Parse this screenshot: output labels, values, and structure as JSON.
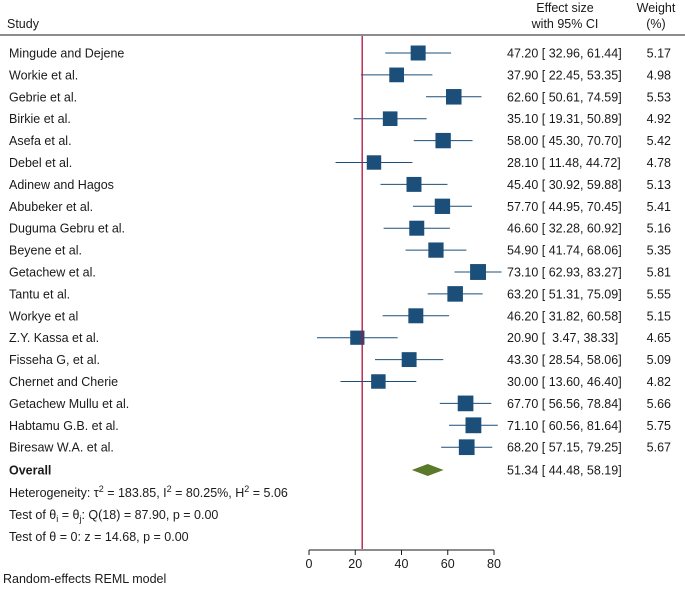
{
  "chart_data": {
    "type": "forest",
    "headers": {
      "study": "Study",
      "effect_line1": "Effect size",
      "effect_line2": "with 95% CI",
      "weight_line1": "Weight",
      "weight_line2": "(%)"
    },
    "studies": [
      {
        "name": "Mingude and Dejene",
        "es": 47.2,
        "lo": 32.96,
        "hi": 61.44,
        "ci_text": "47.20 [ 32.96, 61.44]",
        "weight": "5.17"
      },
      {
        "name": "Workie et al.",
        "es": 37.9,
        "lo": 22.45,
        "hi": 53.35,
        "ci_text": "37.90 [ 22.45, 53.35]",
        "weight": "4.98"
      },
      {
        "name": "Gebrie et al.",
        "es": 62.6,
        "lo": 50.61,
        "hi": 74.59,
        "ci_text": "62.60 [ 50.61, 74.59]",
        "weight": "5.53"
      },
      {
        "name": "Birkie et al.",
        "es": 35.1,
        "lo": 19.31,
        "hi": 50.89,
        "ci_text": "35.10 [ 19.31, 50.89]",
        "weight": "4.92"
      },
      {
        "name": "Asefa et al.",
        "es": 58.0,
        "lo": 45.3,
        "hi": 70.7,
        "ci_text": "58.00 [ 45.30, 70.70]",
        "weight": "5.42"
      },
      {
        "name": "Debel et al.",
        "es": 28.1,
        "lo": 11.48,
        "hi": 44.72,
        "ci_text": "28.10 [ 11.48, 44.72]",
        "weight": "4.78"
      },
      {
        "name": "Adinew and Hagos",
        "es": 45.4,
        "lo": 30.92,
        "hi": 59.88,
        "ci_text": "45.40 [ 30.92, 59.88]",
        "weight": "5.13"
      },
      {
        "name": "Abubeker et al.",
        "es": 57.7,
        "lo": 44.95,
        "hi": 70.45,
        "ci_text": "57.70 [ 44.95, 70.45]",
        "weight": "5.41"
      },
      {
        "name": "Duguma Gebru et al.",
        "es": 46.6,
        "lo": 32.28,
        "hi": 60.92,
        "ci_text": "46.60 [ 32.28, 60.92]",
        "weight": "5.16"
      },
      {
        "name": "Beyene et al.",
        "es": 54.9,
        "lo": 41.74,
        "hi": 68.06,
        "ci_text": "54.90 [ 41.74, 68.06]",
        "weight": "5.35"
      },
      {
        "name": "Getachew et al.",
        "es": 73.1,
        "lo": 62.93,
        "hi": 83.27,
        "ci_text": "73.10 [ 62.93, 83.27]",
        "weight": "5.81"
      },
      {
        "name": "Tantu et al.",
        "es": 63.2,
        "lo": 51.31,
        "hi": 75.09,
        "ci_text": "63.20 [ 51.31, 75.09]",
        "weight": "5.55"
      },
      {
        "name": "Workye et al",
        "es": 46.2,
        "lo": 31.82,
        "hi": 60.58,
        "ci_text": "46.20 [ 31.82, 60.58]",
        "weight": "5.15"
      },
      {
        "name": "Z.Y. Kassa et al.",
        "es": 20.9,
        "lo": 3.47,
        "hi": 38.33,
        "ci_text": "20.90 [  3.47, 38.33]",
        "weight": "4.65"
      },
      {
        "name": "Fisseha G, et al.",
        "es": 43.3,
        "lo": 28.54,
        "hi": 58.06,
        "ci_text": "43.30 [ 28.54, 58.06]",
        "weight": "5.09"
      },
      {
        "name": "Chernet and Cherie",
        "es": 30.0,
        "lo": 13.6,
        "hi": 46.4,
        "ci_text": "30.00 [ 13.60, 46.40]",
        "weight": "4.82"
      },
      {
        "name": "Getachew Mullu et al.",
        "es": 67.7,
        "lo": 56.56,
        "hi": 78.84,
        "ci_text": "67.70 [ 56.56, 78.84]",
        "weight": "5.66"
      },
      {
        "name": "Habtamu G.B. et al.",
        "es": 71.1,
        "lo": 60.56,
        "hi": 81.64,
        "ci_text": "71.10 [ 60.56, 81.64]",
        "weight": "5.75"
      },
      {
        "name": "Biresaw W.A. et al.",
        "es": 68.2,
        "lo": 57.15,
        "hi": 79.25,
        "ci_text": "68.20 [ 57.15, 79.25]",
        "weight": "5.67"
      }
    ],
    "overall": {
      "name": "Overall",
      "es": 51.34,
      "lo": 44.48,
      "hi": 58.19,
      "ci_text": "51.34 [ 44.48, 58.19]"
    },
    "stats": {
      "heterogeneity": "Heterogeneity: τ² = 183.85, I² = 80.25%, H² = 5.06",
      "test_theta_i": "Test of θi = θj: Q(18) = 87.90, p = 0.00",
      "test_theta_0": "Test of θ = 0: z = 14.68, p = 0.00"
    },
    "x_axis": {
      "ticks": [
        0,
        20,
        40,
        60,
        80
      ],
      "tick_labels": [
        "0",
        "20",
        "40",
        "60",
        "80"
      ],
      "range": [
        0,
        80
      ]
    },
    "reference_line": 23,
    "model_note": "Random-effects REML model",
    "colors": {
      "box": "#1b4f7a",
      "ci_line": "#1b4f7a",
      "ref_line": "#b0103a",
      "diamond": "#5a7a2a",
      "text": "#1a1a1a"
    }
  }
}
